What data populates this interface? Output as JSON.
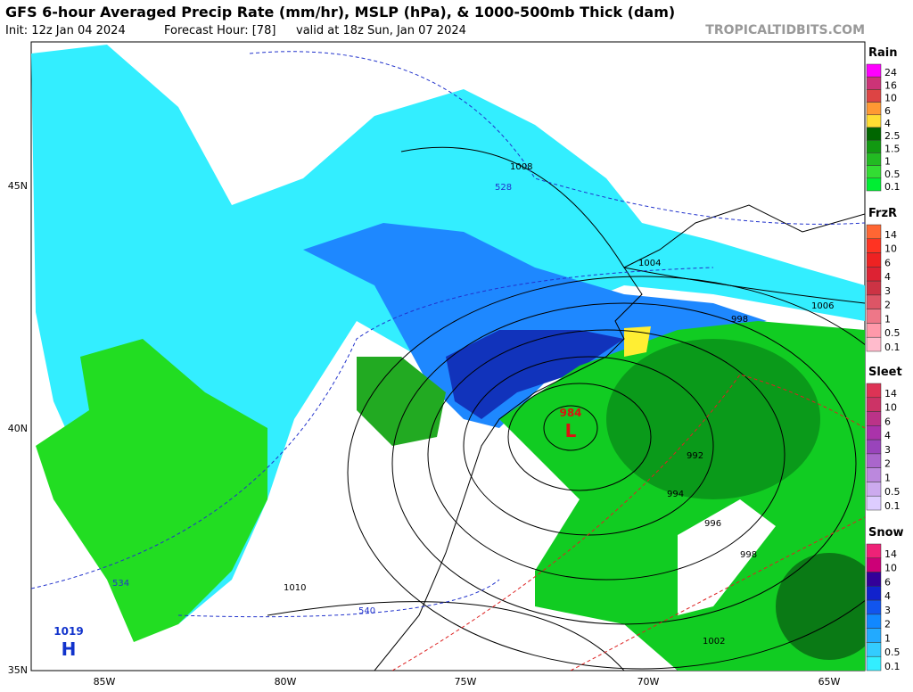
{
  "header": {
    "title": "GFS 6-hour Averaged Precip Rate (mm/hr), MSLP (hPa), & 1000-500mb Thick (dam)",
    "init": "Init: 12z Jan 04 2024",
    "forecast_hour": "Forecast Hour: [78]",
    "valid": "valid at 18z Sun, Jan 07 2024",
    "source": "TROPICALTIDBITS.COM"
  },
  "axes": {
    "lat_labels": [
      "45N",
      "40N",
      "35N"
    ],
    "lon_labels": [
      "85W",
      "80W",
      "75W",
      "70W",
      "65W"
    ]
  },
  "pressure_centers": [
    {
      "letter": "L",
      "pressure": "984"
    },
    {
      "letter": "H",
      "pressure": "1019"
    }
  ],
  "isobar_labels": [
    "1008",
    "1004",
    "1006",
    "998",
    "992",
    "994",
    "996",
    "998",
    "1002",
    "1010"
  ],
  "thickness_labels": [
    "528",
    "534",
    "540"
  ],
  "legend": [
    {
      "title": "Rain",
      "items": [
        {
          "label": "24",
          "color": "#ff00ff"
        },
        {
          "label": "16",
          "color": "#cc3377"
        },
        {
          "label": "10",
          "color": "#dd4444"
        },
        {
          "label": "6",
          "color": "#ff9933"
        },
        {
          "label": "4",
          "color": "#ffdd33"
        },
        {
          "label": "2.5",
          "color": "#006600"
        },
        {
          "label": "1.5",
          "color": "#119911"
        },
        {
          "label": "1",
          "color": "#22bb22"
        },
        {
          "label": "0.5",
          "color": "#33dd33"
        },
        {
          "label": "0.1",
          "color": "#00ee33"
        }
      ]
    },
    {
      "title": "FrzR",
      "items": [
        {
          "label": "14",
          "color": "#ff6633"
        },
        {
          "label": "10",
          "color": "#ff3322"
        },
        {
          "label": "6",
          "color": "#ee2222"
        },
        {
          "label": "4",
          "color": "#dd2233"
        },
        {
          "label": "3",
          "color": "#cc3344"
        },
        {
          "label": "2",
          "color": "#dd5566"
        },
        {
          "label": "1",
          "color": "#ee7788"
        },
        {
          "label": "0.5",
          "color": "#ff99aa"
        },
        {
          "label": "0.1",
          "color": "#ffbbcc"
        }
      ]
    },
    {
      "title": "Sleet",
      "items": [
        {
          "label": "14",
          "color": "#dd3355"
        },
        {
          "label": "10",
          "color": "#cc3366"
        },
        {
          "label": "6",
          "color": "#bb3388"
        },
        {
          "label": "4",
          "color": "#aa33aa"
        },
        {
          "label": "3",
          "color": "#9944bb"
        },
        {
          "label": "2",
          "color": "#aa66cc"
        },
        {
          "label": "1",
          "color": "#bb88dd"
        },
        {
          "label": "0.5",
          "color": "#ccaaee"
        },
        {
          "label": "0.1",
          "color": "#ddccff"
        }
      ]
    },
    {
      "title": "Snow",
      "items": [
        {
          "label": "14",
          "color": "#ee2277"
        },
        {
          "label": "10",
          "color": "#cc0077"
        },
        {
          "label": "6",
          "color": "#330099"
        },
        {
          "label": "4",
          "color": "#1122cc"
        },
        {
          "label": "3",
          "color": "#1155ee"
        },
        {
          "label": "2",
          "color": "#1188ff"
        },
        {
          "label": "1",
          "color": "#22aaff"
        },
        {
          "label": "0.5",
          "color": "#33ccff"
        },
        {
          "label": "0.1",
          "color": "#33eeff"
        }
      ]
    }
  ]
}
